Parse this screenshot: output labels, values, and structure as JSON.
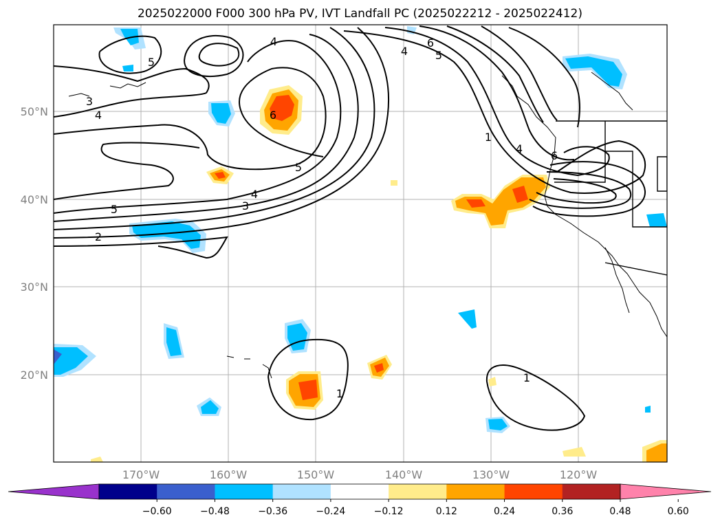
{
  "title": "2025022000 F000 300 hPa PV, IVT Landfall PC (2025022212 - 2025022412)",
  "lat_ticks": [
    "50°N",
    "40°N",
    "30°N",
    "20°N"
  ],
  "lon_ticks": [
    "170°W",
    "160°W",
    "150°W",
    "140°W",
    "130°W",
    "120°W"
  ],
  "colorbar": {
    "ticks": [
      "−0.60",
      "−0.48",
      "−0.36",
      "−0.24",
      "−0.12",
      "0.12",
      "0.24",
      "0.36",
      "0.48",
      "0.60"
    ],
    "colors": [
      "#9932cc",
      "#00008b",
      "#3a5fcd",
      "#00bfff",
      "#b0e2ff",
      "#ffffff",
      "#ffec8b",
      "#ffa500",
      "#ff4500",
      "#b22222",
      "#ff82ab"
    ]
  },
  "contour_labels": [
    "3",
    "4",
    "5",
    "2",
    "5",
    "4",
    "3",
    "6",
    "5",
    "4",
    "6",
    "5",
    "4",
    "1",
    "4",
    "6",
    "1",
    "1"
  ],
  "palette": {
    "pos1": "#ffec8b",
    "pos2": "#ffa500",
    "pos3": "#ff4500",
    "neg1": "#b0e2ff",
    "neg2": "#00bfff",
    "neg3": "#3a5fcd",
    "contour": "#000000",
    "coast": "#000000",
    "grid": "#b0b0b0"
  }
}
